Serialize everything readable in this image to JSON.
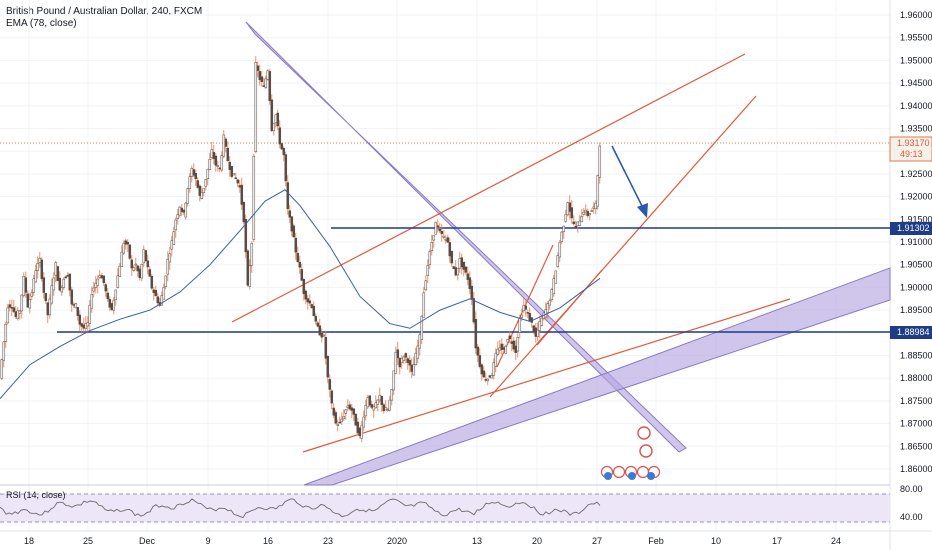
{
  "header": {
    "title": "British Pound / Australian Dollar, 240, FXCM",
    "indicator": "EMA (78, close)"
  },
  "rsi": {
    "title": "RSI (14, close)",
    "levels": [
      "80.00",
      "40.00"
    ]
  },
  "price_badges": {
    "last_price": "1.93170",
    "countdown": "49:13",
    "level_upper": "1.91302",
    "level_lower": "1.88984"
  },
  "colors": {
    "up_candle": "#f2f2f2",
    "candle_body": "#5a4a42",
    "wick": "#e07a4a",
    "ema": "#3a5fa8",
    "hline": "#1f3c88",
    "trend_red": "#e05a3a",
    "channel": "#b7a6e0",
    "channel_edge": "#8a78c8",
    "arrow": "#2a5aa8",
    "rsi_fill": "#ede6f8",
    "rsi_line": "#6a6a6a",
    "badge_blue": "#1f3c88"
  },
  "chart_data": {
    "type": "candlestick",
    "y_axis_ticks": [
      "1.96000",
      "1.95500",
      "1.95000",
      "1.94500",
      "1.94000",
      "1.93500",
      "1.93000",
      "1.92500",
      "1.92000",
      "1.91500",
      "1.91000",
      "1.90500",
      "1.90000",
      "1.89500",
      "1.89000",
      "1.88500",
      "1.88000",
      "1.87500",
      "1.87000",
      "1.86500",
      "1.86000"
    ],
    "x_axis_ticks": [
      "18",
      "25",
      "Dec",
      "9",
      "16",
      "23",
      "2020",
      "13",
      "20",
      "27",
      "Feb",
      "10",
      "17",
      "24"
    ],
    "ylim": [
      1.857,
      1.962
    ],
    "close_path": [
      {
        "x": 0,
        "y": 1.88
      },
      {
        "x": 4,
        "y": 1.888
      },
      {
        "x": 8,
        "y": 1.896
      },
      {
        "x": 12,
        "y": 1.896
      },
      {
        "x": 16,
        "y": 1.8935
      },
      {
        "x": 20,
        "y": 1.895
      },
      {
        "x": 24,
        "y": 1.902
      },
      {
        "x": 28,
        "y": 1.896
      },
      {
        "x": 32,
        "y": 1.899
      },
      {
        "x": 36,
        "y": 1.904
      },
      {
        "x": 40,
        "y": 1.906
      },
      {
        "x": 44,
        "y": 1.899
      },
      {
        "x": 48,
        "y": 1.894
      },
      {
        "x": 52,
        "y": 1.9
      },
      {
        "x": 56,
        "y": 1.905
      },
      {
        "x": 60,
        "y": 1.899
      },
      {
        "x": 64,
        "y": 1.902
      },
      {
        "x": 68,
        "y": 1.903
      },
      {
        "x": 72,
        "y": 1.896
      },
      {
        "x": 76,
        "y": 1.896
      },
      {
        "x": 80,
        "y": 1.892
      },
      {
        "x": 84,
        "y": 1.891
      },
      {
        "x": 88,
        "y": 1.892
      },
      {
        "x": 92,
        "y": 1.899
      },
      {
        "x": 96,
        "y": 1.901
      },
      {
        "x": 100,
        "y": 1.903
      },
      {
        "x": 104,
        "y": 1.901
      },
      {
        "x": 108,
        "y": 1.897
      },
      {
        "x": 112,
        "y": 1.895
      },
      {
        "x": 116,
        "y": 1.9
      },
      {
        "x": 120,
        "y": 1.905
      },
      {
        "x": 124,
        "y": 1.91
      },
      {
        "x": 128,
        "y": 1.909
      },
      {
        "x": 132,
        "y": 1.904
      },
      {
        "x": 136,
        "y": 1.905
      },
      {
        "x": 140,
        "y": 1.902
      },
      {
        "x": 144,
        "y": 1.908
      },
      {
        "x": 148,
        "y": 1.904
      },
      {
        "x": 152,
        "y": 1.9
      },
      {
        "x": 156,
        "y": 1.898
      },
      {
        "x": 160,
        "y": 1.896
      },
      {
        "x": 164,
        "y": 1.9
      },
      {
        "x": 168,
        "y": 1.906
      },
      {
        "x": 172,
        "y": 1.91
      },
      {
        "x": 176,
        "y": 1.915
      },
      {
        "x": 180,
        "y": 1.918
      },
      {
        "x": 184,
        "y": 1.916
      },
      {
        "x": 188,
        "y": 1.922
      },
      {
        "x": 192,
        "y": 1.926
      },
      {
        "x": 196,
        "y": 1.924
      },
      {
        "x": 200,
        "y": 1.92
      },
      {
        "x": 204,
        "y": 1.922
      },
      {
        "x": 208,
        "y": 1.926
      },
      {
        "x": 212,
        "y": 1.93
      },
      {
        "x": 216,
        "y": 1.927
      },
      {
        "x": 220,
        "y": 1.926
      },
      {
        "x": 224,
        "y": 1.933
      },
      {
        "x": 228,
        "y": 1.928
      },
      {
        "x": 232,
        "y": 1.925
      },
      {
        "x": 236,
        "y": 1.924
      },
      {
        "x": 240,
        "y": 1.922
      },
      {
        "x": 244,
        "y": 1.915
      },
      {
        "x": 248,
        "y": 1.9
      },
      {
        "x": 252,
        "y": 1.91
      },
      {
        "x": 256,
        "y": 1.949
      },
      {
        "x": 260,
        "y": 1.946
      },
      {
        "x": 264,
        "y": 1.944
      },
      {
        "x": 268,
        "y": 1.948
      },
      {
        "x": 272,
        "y": 1.935
      },
      {
        "x": 276,
        "y": 1.938
      },
      {
        "x": 280,
        "y": 1.932
      },
      {
        "x": 284,
        "y": 1.929
      },
      {
        "x": 288,
        "y": 1.917
      },
      {
        "x": 292,
        "y": 1.913
      },
      {
        "x": 296,
        "y": 1.908
      },
      {
        "x": 300,
        "y": 1.904
      },
      {
        "x": 304,
        "y": 1.899
      },
      {
        "x": 308,
        "y": 1.897
      },
      {
        "x": 312,
        "y": 1.896
      },
      {
        "x": 316,
        "y": 1.892
      },
      {
        "x": 320,
        "y": 1.89
      },
      {
        "x": 324,
        "y": 1.889
      },
      {
        "x": 328,
        "y": 1.88
      },
      {
        "x": 332,
        "y": 1.874
      },
      {
        "x": 336,
        "y": 1.87
      },
      {
        "x": 340,
        "y": 1.87
      },
      {
        "x": 344,
        "y": 1.872
      },
      {
        "x": 348,
        "y": 1.874
      },
      {
        "x": 352,
        "y": 1.873
      },
      {
        "x": 356,
        "y": 1.87
      },
      {
        "x": 360,
        "y": 1.867
      },
      {
        "x": 364,
        "y": 1.872
      },
      {
        "x": 368,
        "y": 1.876
      },
      {
        "x": 372,
        "y": 1.873
      },
      {
        "x": 376,
        "y": 1.874
      },
      {
        "x": 380,
        "y": 1.876
      },
      {
        "x": 384,
        "y": 1.873
      },
      {
        "x": 388,
        "y": 1.873
      },
      {
        "x": 392,
        "y": 1.877
      },
      {
        "x": 396,
        "y": 1.886
      },
      {
        "x": 400,
        "y": 1.883
      },
      {
        "x": 404,
        "y": 1.885
      },
      {
        "x": 408,
        "y": 1.884
      },
      {
        "x": 412,
        "y": 1.881
      },
      {
        "x": 416,
        "y": 1.885
      },
      {
        "x": 420,
        "y": 1.889
      },
      {
        "x": 424,
        "y": 1.899
      },
      {
        "x": 428,
        "y": 1.905
      },
      {
        "x": 432,
        "y": 1.91
      },
      {
        "x": 436,
        "y": 1.914
      },
      {
        "x": 440,
        "y": 1.912
      },
      {
        "x": 444,
        "y": 1.911
      },
      {
        "x": 448,
        "y": 1.91
      },
      {
        "x": 452,
        "y": 1.905
      },
      {
        "x": 456,
        "y": 1.903
      },
      {
        "x": 460,
        "y": 1.906
      },
      {
        "x": 464,
        "y": 1.904
      },
      {
        "x": 468,
        "y": 1.902
      },
      {
        "x": 472,
        "y": 1.898
      },
      {
        "x": 476,
        "y": 1.887
      },
      {
        "x": 480,
        "y": 1.883
      },
      {
        "x": 484,
        "y": 1.88
      },
      {
        "x": 488,
        "y": 1.88
      },
      {
        "x": 492,
        "y": 1.881
      },
      {
        "x": 496,
        "y": 1.885
      },
      {
        "x": 500,
        "y": 1.887
      },
      {
        "x": 504,
        "y": 1.886
      },
      {
        "x": 508,
        "y": 1.889
      },
      {
        "x": 512,
        "y": 1.888
      },
      {
        "x": 516,
        "y": 1.886
      },
      {
        "x": 520,
        "y": 1.893
      },
      {
        "x": 524,
        "y": 1.896
      },
      {
        "x": 528,
        "y": 1.894
      },
      {
        "x": 532,
        "y": 1.892
      },
      {
        "x": 536,
        "y": 1.889
      },
      {
        "x": 540,
        "y": 1.892
      },
      {
        "x": 544,
        "y": 1.894
      },
      {
        "x": 548,
        "y": 1.896
      },
      {
        "x": 552,
        "y": 1.899
      },
      {
        "x": 556,
        "y": 1.904
      },
      {
        "x": 560,
        "y": 1.91
      },
      {
        "x": 564,
        "y": 1.914
      },
      {
        "x": 568,
        "y": 1.919
      },
      {
        "x": 572,
        "y": 1.915
      },
      {
        "x": 576,
        "y": 1.913
      },
      {
        "x": 580,
        "y": 1.915
      },
      {
        "x": 584,
        "y": 1.917
      },
      {
        "x": 588,
        "y": 1.916
      },
      {
        "x": 592,
        "y": 1.917
      },
      {
        "x": 596,
        "y": 1.918
      },
      {
        "x": 600,
        "y": 1.9317
      }
    ],
    "ema_path": [
      {
        "x": 0,
        "y": 1.8755
      },
      {
        "x": 30,
        "y": 1.883
      },
      {
        "x": 60,
        "y": 1.887
      },
      {
        "x": 90,
        "y": 1.8905
      },
      {
        "x": 120,
        "y": 1.893
      },
      {
        "x": 150,
        "y": 1.895
      },
      {
        "x": 180,
        "y": 1.899
      },
      {
        "x": 210,
        "y": 1.905
      },
      {
        "x": 240,
        "y": 1.9125
      },
      {
        "x": 265,
        "y": 1.919
      },
      {
        "x": 285,
        "y": 1.9215
      },
      {
        "x": 300,
        "y": 1.918
      },
      {
        "x": 330,
        "y": 1.909
      },
      {
        "x": 360,
        "y": 1.898
      },
      {
        "x": 390,
        "y": 1.892
      },
      {
        "x": 410,
        "y": 1.891
      },
      {
        "x": 440,
        "y": 1.895
      },
      {
        "x": 470,
        "y": 1.8975
      },
      {
        "x": 500,
        "y": 1.8945
      },
      {
        "x": 530,
        "y": 1.8925
      },
      {
        "x": 560,
        "y": 1.8955
      },
      {
        "x": 600,
        "y": 1.902
      }
    ],
    "horizontal_levels": [
      1.91302,
      1.88984
    ],
    "last_price": 1.9317
  }
}
